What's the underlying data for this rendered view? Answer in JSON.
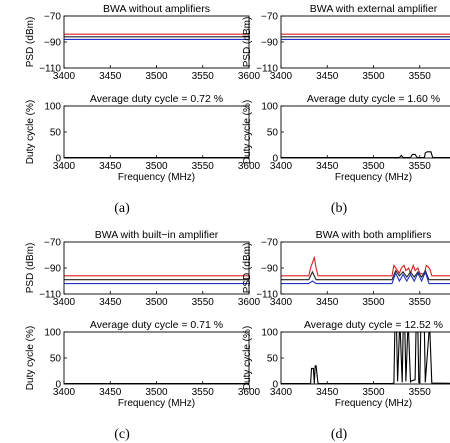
{
  "chart_data": [
    {
      "type": "line",
      "panel": "a-psd",
      "title": "BWA without amplifiers",
      "ylabel": "PSD (dBm)",
      "xlabel": "",
      "xlim": [
        3400,
        3600
      ],
      "ylim": [
        -110,
        -70
      ],
      "xticks": [
        "3400",
        "3450",
        "3500",
        "3550",
        "3600"
      ],
      "yticks": [
        "−70",
        "−90",
        "−110"
      ],
      "ytick_values": [
        -70,
        -90,
        -110
      ],
      "series": [
        {
          "color": "#d62020",
          "x": [
            3400,
            3500,
            3600
          ],
          "y": [
            -84,
            -84,
            -84
          ]
        },
        {
          "color": "#222222",
          "x": [
            3400,
            3500,
            3600
          ],
          "y": [
            -86,
            -86,
            -86
          ]
        },
        {
          "color": "#2030c8",
          "x": [
            3400,
            3500,
            3600
          ],
          "y": [
            -88,
            -88,
            -88
          ]
        }
      ]
    },
    {
      "type": "line",
      "panel": "a-duty",
      "title": "Average duty cycle = 0.72 %",
      "ylabel": "Duty cycle (%)",
      "xlabel": "Frequency (MHz)",
      "xlim": [
        3400,
        3600
      ],
      "ylim": [
        0,
        100
      ],
      "xticks": [
        "3400",
        "3450",
        "3500",
        "3550",
        "3600"
      ],
      "yticks": [
        "100",
        "50",
        "0"
      ],
      "ytick_values": [
        100,
        50,
        0
      ],
      "series": [
        {
          "color": "#000000",
          "x": [
            3400,
            3600
          ],
          "y": [
            1,
            1
          ]
        }
      ]
    },
    {
      "type": "line",
      "panel": "b-psd",
      "title": "BWA with external amplifier",
      "ylabel": "PSD (dBm)",
      "xlabel": "",
      "xlim": [
        3400,
        3600
      ],
      "ylim": [
        -110,
        -70
      ],
      "xticks": [
        "3400",
        "3450",
        "3500",
        "3550",
        "3600"
      ],
      "yticks": [
        "−70",
        "−90",
        "−110"
      ],
      "ytick_values": [
        -70,
        -90,
        -110
      ],
      "series": [
        {
          "color": "#d62020",
          "x": [
            3400,
            3500,
            3600
          ],
          "y": [
            -84,
            -84,
            -84
          ]
        },
        {
          "color": "#222222",
          "x": [
            3400,
            3500,
            3600
          ],
          "y": [
            -86,
            -86,
            -86
          ]
        },
        {
          "color": "#2030c8",
          "x": [
            3400,
            3500,
            3600
          ],
          "y": [
            -88,
            -88,
            -88
          ]
        }
      ]
    },
    {
      "type": "line",
      "panel": "b-duty",
      "title": "Average duty cycle = 1.60 %",
      "ylabel": "Duty cycle (%)",
      "xlabel": "Frequency (MHz)",
      "xlim": [
        3400,
        3600
      ],
      "ylim": [
        0,
        100
      ],
      "xticks": [
        "3400",
        "3450",
        "3500",
        "3550",
        "3600"
      ],
      "yticks": [
        "100",
        "50",
        "0"
      ],
      "ytick_values": [
        100,
        50,
        0
      ],
      "series": [
        {
          "color": "#000000",
          "x": [
            3400,
            3520,
            3528,
            3530,
            3532,
            3540,
            3542,
            3545,
            3547,
            3555,
            3556,
            3558,
            3562,
            3564,
            3600
          ],
          "y": [
            1,
            1,
            1,
            5,
            1,
            1,
            7,
            7,
            1,
            1,
            10,
            12,
            12,
            1,
            1
          ]
        }
      ]
    },
    {
      "type": "line",
      "panel": "c-psd",
      "title": "BWA with built−in amplifier",
      "ylabel": "PSD (dBm)",
      "xlabel": "",
      "xlim": [
        3400,
        3600
      ],
      "ylim": [
        -110,
        -70
      ],
      "xticks": [
        "3400",
        "3450",
        "3500",
        "3550",
        "3600"
      ],
      "yticks": [
        "−70",
        "−90",
        "−110"
      ],
      "ytick_values": [
        -70,
        -90,
        -110
      ],
      "series": [
        {
          "color": "#d62020",
          "x": [
            3400,
            3500,
            3600
          ],
          "y": [
            -96,
            -96,
            -96
          ]
        },
        {
          "color": "#222222",
          "x": [
            3400,
            3500,
            3600
          ],
          "y": [
            -99,
            -99,
            -99
          ]
        },
        {
          "color": "#2030c8",
          "x": [
            3400,
            3500,
            3600
          ],
          "y": [
            -102,
            -102,
            -102
          ]
        }
      ]
    },
    {
      "type": "line",
      "panel": "c-duty",
      "title": "Average duty cycle = 0.71 %",
      "ylabel": "Duty cycle (%)",
      "xlabel": "Frequency (MHz)",
      "xlim": [
        3400,
        3600
      ],
      "ylim": [
        0,
        100
      ],
      "xticks": [
        "3400",
        "3450",
        "3500",
        "3550",
        "3600"
      ],
      "yticks": [
        "100",
        "50",
        "0"
      ],
      "ytick_values": [
        100,
        50,
        0
      ],
      "series": [
        {
          "color": "#000000",
          "x": [
            3400,
            3600
          ],
          "y": [
            1,
            1
          ]
        }
      ]
    },
    {
      "type": "line",
      "panel": "d-psd",
      "title": "BWA with both amplifiers",
      "ylabel": "PSD (dBm)",
      "xlabel": "",
      "xlim": [
        3400,
        3600
      ],
      "ylim": [
        -110,
        -70
      ],
      "xticks": [
        "3400",
        "3450",
        "3500",
        "3550",
        "3600"
      ],
      "yticks": [
        "−70",
        "−90",
        "−110"
      ],
      "ytick_values": [
        -70,
        -90,
        -110
      ],
      "series": [
        {
          "color": "#d62020",
          "x": [
            3400,
            3430,
            3432,
            3434,
            3436,
            3438,
            3440,
            3520,
            3522,
            3524,
            3528,
            3530,
            3533,
            3535,
            3538,
            3540,
            3543,
            3545,
            3548,
            3550,
            3555,
            3557,
            3559,
            3561,
            3563,
            3600
          ],
          "y": [
            -96,
            -96,
            -90,
            -86,
            -82,
            -90,
            -96,
            -96,
            -88,
            -90,
            -94,
            -90,
            -88,
            -92,
            -90,
            -94,
            -88,
            -92,
            -90,
            -94,
            -95,
            -88,
            -89,
            -91,
            -96,
            -96
          ]
        },
        {
          "color": "#222222",
          "x": [
            3400,
            3430,
            3434,
            3438,
            3520,
            3524,
            3528,
            3532,
            3536,
            3540,
            3544,
            3548,
            3552,
            3556,
            3560,
            3600
          ],
          "y": [
            -99,
            -99,
            -93,
            -99,
            -99,
            -92,
            -96,
            -93,
            -97,
            -93,
            -97,
            -93,
            -97,
            -92,
            -99,
            -99
          ]
        },
        {
          "color": "#2030c8",
          "x": [
            3400,
            3430,
            3434,
            3438,
            3520,
            3524,
            3528,
            3532,
            3536,
            3540,
            3544,
            3548,
            3552,
            3556,
            3560,
            3600
          ],
          "y": [
            -102,
            -102,
            -100,
            -102,
            -102,
            -94,
            -100,
            -95,
            -100,
            -95,
            -100,
            -94,
            -100,
            -93,
            -102,
            -102
          ]
        }
      ]
    },
    {
      "type": "line",
      "panel": "d-duty",
      "title": "Average duty cycle = 12.52 %",
      "ylabel": "Duty cycle (%)",
      "xlabel": "Frequency (MHz)",
      "xlim": [
        3400,
        3600
      ],
      "ylim": [
        0,
        100
      ],
      "xticks": [
        "3400",
        "3450",
        "3500",
        "3550",
        "3600"
      ],
      "yticks": [
        "100",
        "50",
        "0"
      ],
      "ytick_values": [
        100,
        50,
        0
      ],
      "series": [
        {
          "color": "#000000",
          "x": [
            3400,
            3432,
            3433,
            3435,
            3436,
            3437,
            3438,
            3440,
            3520,
            3522,
            3523,
            3525,
            3526,
            3528,
            3529,
            3531,
            3532,
            3534,
            3535,
            3537,
            3538,
            3540,
            3541,
            3545,
            3546,
            3548,
            3549,
            3550,
            3551,
            3555,
            3556,
            3560,
            3561,
            3563,
            3600
          ],
          "y": [
            1,
            1,
            30,
            30,
            1,
            35,
            35,
            1,
            1,
            2,
            100,
            100,
            5,
            100,
            100,
            3,
            100,
            100,
            5,
            100,
            100,
            4,
            6,
            8,
            100,
            100,
            3,
            2,
            100,
            100,
            3,
            100,
            100,
            2,
            1
          ]
        }
      ]
    }
  ],
  "captions": [
    "(a)",
    "(b)",
    "(c)",
    "(d)"
  ]
}
